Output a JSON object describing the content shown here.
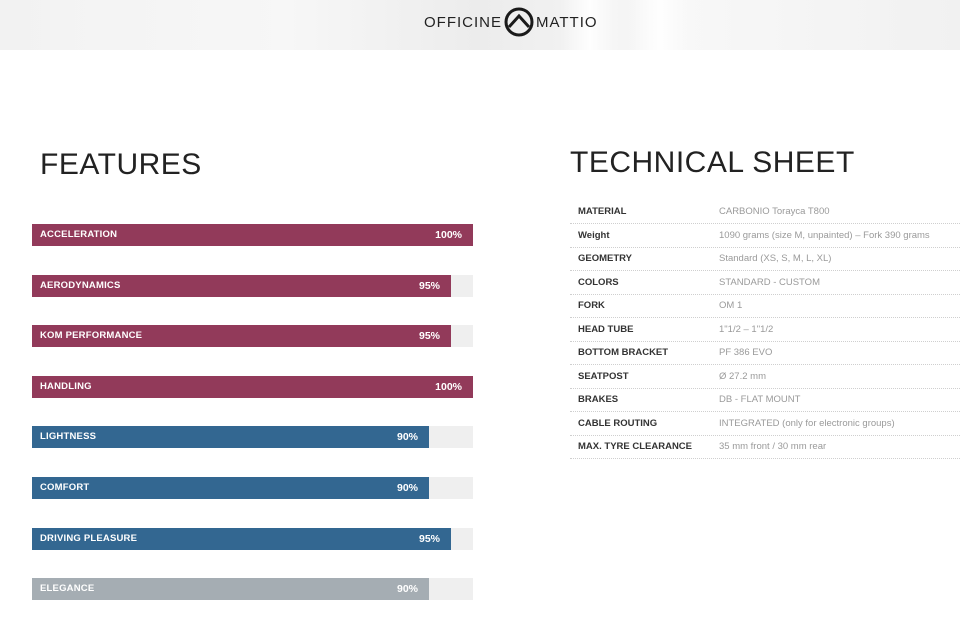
{
  "header": {
    "brand_left": "OFFICINE",
    "brand_right": "MATTIO",
    "logo_icon": "mountain-circle-icon"
  },
  "features": {
    "title": "FEATURES",
    "items": [
      {
        "label": "ACCELERATION",
        "value": "100%",
        "percent": 100,
        "color": "#923a5a"
      },
      {
        "label": "AERODYNAMICS",
        "value": "95%",
        "percent": 95,
        "color": "#923a5a"
      },
      {
        "label": "KOM PERFORMANCE",
        "value": "95%",
        "percent": 95,
        "color": "#923a5a"
      },
      {
        "label": "HANDLING",
        "value": "100%",
        "percent": 100,
        "color": "#923a5a"
      },
      {
        "label": "LIGHTNESS",
        "value": "90%",
        "percent": 90,
        "color": "#336791"
      },
      {
        "label": "COMFORT",
        "value": "90%",
        "percent": 90,
        "color": "#336791"
      },
      {
        "label": "DRIVING PLEASURE",
        "value": "95%",
        "percent": 95,
        "color": "#336791"
      },
      {
        "label": "ELEGANCE",
        "value": "90%",
        "percent": 90,
        "color": "#a5adb3"
      }
    ]
  },
  "technical_sheet": {
    "title": "TECHNICAL SHEET",
    "rows": [
      {
        "key": "MATERIAL",
        "value": "CARBONIO Torayca T800"
      },
      {
        "key": "Weight",
        "value": "1090 grams (size M, unpainted) – Fork 390 grams"
      },
      {
        "key": "GEOMETRY",
        "value": "Standard (XS, S, M, L, XL)"
      },
      {
        "key": "COLORS",
        "value": "STANDARD - CUSTOM"
      },
      {
        "key": "FORK",
        "value": "OM 1"
      },
      {
        "key": "HEAD TUBE",
        "value": "1\"1/2 – 1\"1/2"
      },
      {
        "key": "BOTTOM BRACKET",
        "value": "PF 386 EVO"
      },
      {
        "key": "SEATPOST",
        "value": "Ø 27.2 mm"
      },
      {
        "key": "BRAKES",
        "value": "DB - FLAT MOUNT"
      },
      {
        "key": "CABLE ROUTING",
        "value": "INTEGRATED (only for electronic groups)"
      },
      {
        "key": "MAX. TYRE CLEARANCE",
        "value": "35 mm front / 30 mm rear"
      }
    ]
  }
}
